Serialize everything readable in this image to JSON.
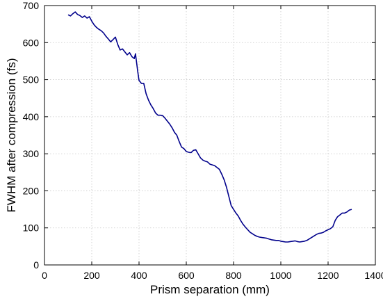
{
  "chart_data": {
    "type": "line",
    "title": "",
    "xlabel": "Prism separation (mm)",
    "ylabel": "FWHM after compression (fs)",
    "xlim": [
      0,
      1400
    ],
    "ylim": [
      0,
      700
    ],
    "xticks": [
      0,
      200,
      400,
      600,
      800,
      1000,
      1200,
      1400
    ],
    "yticks": [
      0,
      100,
      200,
      300,
      400,
      500,
      600,
      700
    ],
    "grid": true,
    "legend": "none",
    "series": [
      {
        "color": "#00008b",
        "x": [
          100,
          110,
          120,
          130,
          140,
          150,
          160,
          170,
          180,
          190,
          200,
          210,
          220,
          230,
          240,
          250,
          260,
          270,
          280,
          290,
          300,
          310,
          320,
          330,
          340,
          350,
          360,
          370,
          380,
          385,
          390,
          395,
          400,
          410,
          420,
          430,
          440,
          450,
          460,
          470,
          480,
          490,
          500,
          510,
          520,
          530,
          540,
          550,
          560,
          570,
          580,
          590,
          600,
          610,
          620,
          630,
          640,
          650,
          660,
          670,
          680,
          690,
          700,
          710,
          720,
          730,
          740,
          750,
          760,
          770,
          780,
          790,
          800,
          810,
          820,
          830,
          840,
          850,
          860,
          870,
          880,
          890,
          900,
          910,
          920,
          930,
          940,
          950,
          960,
          970,
          980,
          990,
          1000,
          1010,
          1020,
          1030,
          1040,
          1050,
          1060,
          1070,
          1080,
          1090,
          1100,
          1110,
          1120,
          1130,
          1140,
          1150,
          1160,
          1170,
          1180,
          1190,
          1200,
          1210,
          1220,
          1230,
          1240,
          1250,
          1260,
          1270,
          1280,
          1290,
          1300
        ],
        "y": [
          675,
          672,
          678,
          683,
          676,
          673,
          668,
          672,
          666,
          670,
          658,
          648,
          641,
          636,
          632,
          626,
          617,
          610,
          602,
          608,
          615,
          595,
          580,
          583,
          575,
          567,
          573,
          562,
          557,
          570,
          545,
          520,
          498,
          490,
          490,
          462,
          445,
          432,
          422,
          410,
          404,
          404,
          403,
          396,
          388,
          380,
          370,
          358,
          350,
          333,
          318,
          314,
          306,
          304,
          303,
          309,
          311,
          300,
          289,
          283,
          280,
          278,
          272,
          270,
          268,
          263,
          258,
          245,
          230,
          210,
          185,
          160,
          150,
          140,
          132,
          120,
          110,
          102,
          95,
          88,
          84,
          80,
          77,
          75,
          74,
          73,
          72,
          70,
          68,
          67,
          66,
          66,
          64,
          63,
          62,
          62,
          63,
          64,
          65,
          63,
          62,
          63,
          64,
          66,
          70,
          74,
          78,
          82,
          85,
          86,
          88,
          92,
          95,
          98,
          103,
          120,
          130,
          135,
          140,
          140,
          143,
          148,
          150
        ]
      }
    ]
  }
}
